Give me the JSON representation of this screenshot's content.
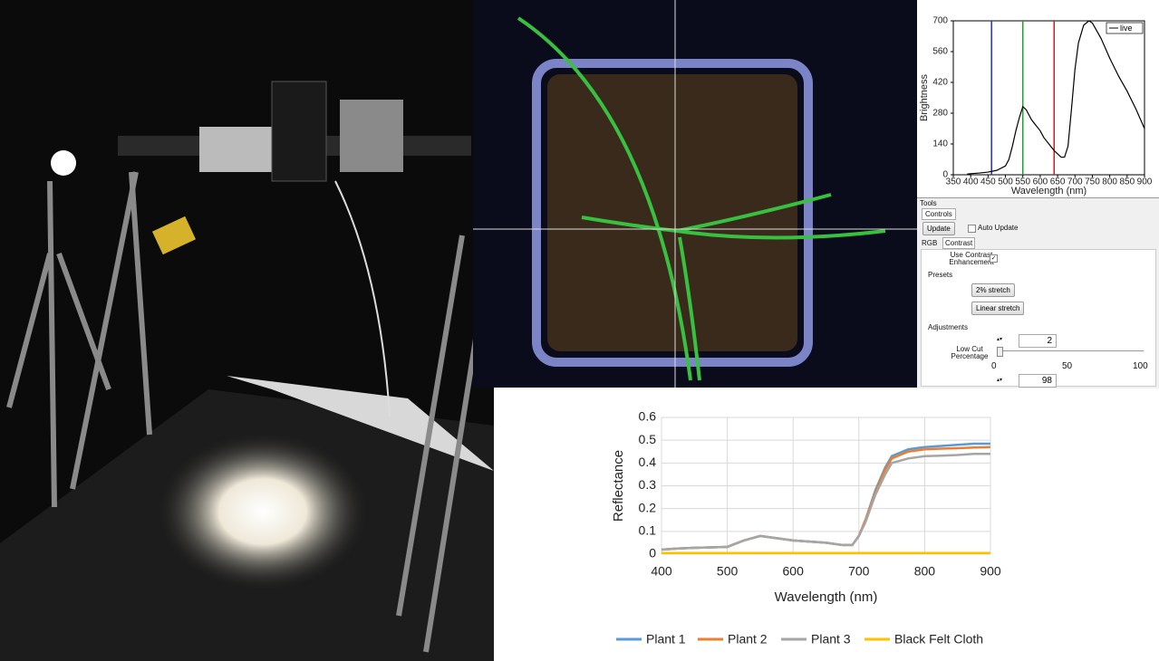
{
  "chart_data": [
    {
      "type": "line",
      "x_label": "Wavelength (nm)",
      "y_label": "Brightness",
      "xlim": [
        350,
        900
      ],
      "xticks": [
        350,
        400,
        450,
        500,
        550,
        600,
        650,
        700,
        750,
        800,
        850,
        900
      ],
      "ylim": [
        0,
        700
      ],
      "yticks": [
        0,
        140,
        280,
        420,
        560,
        700
      ],
      "grid": false,
      "legend": "top-right",
      "x": [
        390,
        400,
        425,
        450,
        475,
        500,
        510,
        520,
        530,
        540,
        550,
        560,
        575,
        600,
        610,
        625,
        640,
        660,
        670,
        680,
        690,
        700,
        710,
        725,
        740,
        750,
        775,
        800,
        825,
        850,
        875,
        900
      ],
      "series": [
        {
          "name": "live",
          "color": "#000000",
          "values": [
            3,
            5,
            8,
            12,
            20,
            40,
            70,
            130,
            200,
            260,
            310,
            295,
            250,
            200,
            170,
            140,
            110,
            80,
            80,
            130,
            300,
            480,
            600,
            680,
            700,
            690,
            620,
            530,
            450,
            380,
            300,
            210
          ]
        }
      ],
      "markers": [
        {
          "value": 460,
          "color": "#2030c8"
        },
        {
          "value": 550,
          "color": "#20a030"
        },
        {
          "value": 640,
          "color": "#d02020"
        }
      ]
    },
    {
      "type": "line",
      "x_label": "Wavelength (nm)",
      "y_label": "Reflectance",
      "xlim": [
        400,
        900
      ],
      "xticks": [
        400,
        500,
        600,
        700,
        800,
        900
      ],
      "ylim": [
        0,
        0.6
      ],
      "yticks": [
        0,
        0.1,
        0.2,
        0.3,
        0.4,
        0.5,
        0.6
      ],
      "grid": true,
      "legend": "bottom",
      "x": [
        400,
        425,
        450,
        475,
        500,
        525,
        550,
        575,
        600,
        625,
        650,
        675,
        690,
        700,
        710,
        725,
        740,
        750,
        775,
        800,
        825,
        850,
        875,
        900
      ],
      "series": [
        {
          "name": "Plant 1",
          "color": "#5b9bd5",
          "values": [
            0.02,
            0.025,
            0.028,
            0.03,
            0.032,
            0.06,
            0.08,
            0.07,
            0.06,
            0.055,
            0.05,
            0.04,
            0.04,
            0.08,
            0.15,
            0.28,
            0.38,
            0.43,
            0.46,
            0.47,
            0.475,
            0.48,
            0.485,
            0.485
          ]
        },
        {
          "name": "Plant 2",
          "color": "#ed7d31",
          "values": [
            0.02,
            0.025,
            0.028,
            0.03,
            0.032,
            0.06,
            0.08,
            0.07,
            0.06,
            0.055,
            0.05,
            0.04,
            0.04,
            0.08,
            0.15,
            0.27,
            0.37,
            0.42,
            0.45,
            0.46,
            0.463,
            0.465,
            0.468,
            0.47
          ]
        },
        {
          "name": "Plant 3",
          "color": "#a5a5a5",
          "values": [
            0.02,
            0.025,
            0.028,
            0.03,
            0.032,
            0.06,
            0.08,
            0.07,
            0.06,
            0.055,
            0.05,
            0.04,
            0.04,
            0.08,
            0.14,
            0.26,
            0.35,
            0.4,
            0.42,
            0.43,
            0.432,
            0.435,
            0.44,
            0.44
          ]
        },
        {
          "name": "Black Felt Cloth",
          "color": "#ffc000",
          "values": [
            0.005,
            0.005,
            0.005,
            0.005,
            0.005,
            0.005,
            0.005,
            0.005,
            0.005,
            0.005,
            0.005,
            0.005,
            0.005,
            0.005,
            0.005,
            0.005,
            0.005,
            0.005,
            0.005,
            0.005,
            0.005,
            0.005,
            0.005,
            0.005
          ]
        }
      ]
    }
  ],
  "tools_panel": {
    "title": "Tools",
    "tab": "Controls",
    "update": "Update",
    "auto_update": "Auto Update",
    "tabs": [
      "RGB",
      "Contrast"
    ],
    "use_contrast": "Use Contrast Enhancement",
    "presets": "Presets",
    "stretch_2": "2% stretch",
    "linear_stretch": "Linear stretch",
    "adjustments": "Adjustments",
    "low_cut": "Low Cut Percentage",
    "low_cut_value": 2,
    "slider_ticks": [
      "0",
      "50",
      "100"
    ],
    "high_cut_value": 98
  }
}
